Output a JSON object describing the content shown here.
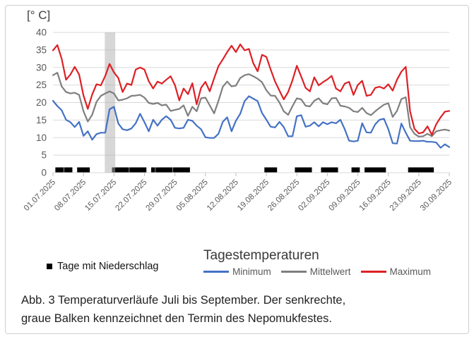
{
  "figure": {
    "unit_label": "[° C]",
    "caption_lines": [
      "Abb. 3 Temperaturverläufe Juli bis September. Der senkrechte,",
      "graue Balken kennzeichnet den Termin des Nepomukfestes."
    ]
  },
  "legend": {
    "precipitation_label": "Tage mit Niederschlag",
    "title": "Tagestemperaturen",
    "items": [
      {
        "label": "Minimum",
        "color": "#4472c4"
      },
      {
        "label": "Mittelwert",
        "color": "#7f7f7f"
      },
      {
        "label": "Maximum",
        "color": "#dd2025"
      }
    ]
  },
  "chart_data": {
    "type": "line",
    "title": "Tagestemperaturen",
    "y_unit": "[° C]",
    "ylim": [
      0,
      40
    ],
    "y_ticks": [
      0,
      5,
      10,
      15,
      20,
      25,
      30,
      35,
      40
    ],
    "grid": "horizontal-only",
    "x_tick_days": [
      0,
      7,
      14,
      21,
      28,
      35,
      42,
      49,
      56,
      63,
      70,
      77,
      84,
      91
    ],
    "x_tick_labels": [
      "01.07.2025",
      "08.07.2025",
      "15.07.2025",
      "22.07.2025",
      "29.07.2025",
      "05.08.2025",
      "12.08.2025",
      "19.08.2025",
      "26.08.2025",
      "02.09.2025",
      "09.09.2025",
      "16.09.2025",
      "23.09.2025",
      "30.09.2025"
    ],
    "event_band": {
      "start_day": 11.9,
      "end_day": 14.3,
      "fill": "rgba(175,175,175,0.5)",
      "meaning": "Termin des Nepomukfestes"
    },
    "precipitation": {
      "label": "Tage mit Niederschlag",
      "marker_color": "#000000",
      "day_ranges": [
        [
          1,
          2
        ],
        [
          3,
          4
        ],
        [
          6,
          8
        ],
        [
          14,
          17
        ],
        [
          18,
          21
        ],
        [
          23,
          23
        ],
        [
          24,
          27
        ],
        [
          28,
          31
        ],
        [
          49,
          51
        ],
        [
          56,
          59
        ],
        [
          62,
          65
        ],
        [
          69,
          70
        ],
        [
          72,
          76
        ],
        [
          82,
          87
        ]
      ]
    },
    "series": [
      {
        "name": "Minimum",
        "color": "#4472c4",
        "values": [
          20.5,
          19.0,
          17.8,
          15.1,
          14.4,
          13.0,
          14.5,
          10.5,
          11.8,
          9.4,
          11.0,
          11.4,
          11.4,
          18.1,
          18.8,
          14.0,
          12.4,
          12.1,
          12.6,
          14.1,
          16.8,
          14.4,
          11.8,
          15.1,
          13.4,
          15.1,
          16.1,
          15.1,
          12.8,
          12.6,
          12.8,
          15.1,
          14.8,
          13.4,
          12.4,
          10.1,
          9.9,
          9.9,
          11.1,
          14.5,
          15.8,
          11.8,
          14.8,
          16.8,
          20.4,
          21.8,
          21.1,
          20.4,
          17.0,
          15.1,
          13.1,
          12.9,
          14.5,
          13.0,
          10.4,
          10.4,
          16.1,
          16.4,
          13.1,
          13.4,
          14.4,
          13.2,
          14.4,
          13.8,
          14.4,
          14.1,
          15.1,
          12.4,
          9.1,
          8.9,
          9.1,
          14.1,
          11.5,
          11.4,
          13.8,
          15.1,
          15.4,
          12.4,
          8.4,
          8.3,
          14.0,
          11.4,
          9.1,
          9.0,
          9.0,
          9.1,
          8.8,
          8.8,
          8.6,
          7.1,
          8.1,
          7.3
        ]
      },
      {
        "name": "Mittelwert",
        "color": "#7f7f7f",
        "values": [
          27.8,
          28.5,
          24.6,
          23.0,
          22.6,
          22.8,
          22.2,
          17.5,
          14.6,
          16.5,
          20.2,
          21.9,
          22.6,
          23.2,
          22.6,
          20.6,
          20.8,
          21.2,
          21.9,
          22.0,
          22.2,
          21.4,
          19.9,
          19.6,
          19.9,
          19.2,
          19.4,
          17.6,
          17.9,
          18.2,
          19.2,
          16.2,
          18.8,
          17.5,
          21.2,
          21.4,
          19.2,
          16.9,
          20.5,
          24.5,
          26.0,
          24.6,
          24.8,
          27.0,
          27.8,
          28.1,
          27.5,
          26.8,
          25.8,
          23.5,
          22.0,
          21.9,
          20.0,
          17.5,
          16.5,
          19.0,
          21.2,
          20.9,
          19.1,
          18.9,
          20.5,
          21.2,
          19.8,
          19.5,
          21.2,
          21.3,
          19.1,
          18.9,
          18.5,
          17.5,
          17.3,
          18.5,
          17.0,
          16.4,
          17.5,
          18.5,
          19.4,
          19.8,
          15.9,
          17.6,
          21.0,
          21.5,
          13.0,
          11.1,
          10.3,
          10.4,
          11.1,
          10.4,
          11.8,
          12.1,
          12.3,
          12.0
        ]
      },
      {
        "name": "Maximum",
        "color": "#dd2025",
        "values": [
          34.9,
          36.4,
          32.5,
          26.5,
          28.0,
          30.2,
          28.0,
          22.0,
          18.2,
          22.3,
          25.2,
          24.9,
          27.6,
          31.0,
          28.6,
          27.0,
          23.0,
          25.4,
          25.0,
          29.4,
          30.0,
          29.4,
          26.1,
          24.0,
          26.0,
          25.4,
          26.5,
          27.5,
          25.0,
          20.6,
          24.0,
          22.4,
          25.5,
          19.5,
          24.2,
          25.9,
          23.2,
          26.9,
          30.4,
          32.3,
          34.4,
          36.2,
          34.4,
          36.6,
          34.9,
          35.3,
          31.2,
          28.9,
          33.6,
          33.0,
          29.4,
          26.0,
          23.4,
          20.9,
          23.0,
          26.4,
          30.5,
          27.4,
          24.2,
          23.2,
          27.2,
          24.9,
          25.8,
          26.6,
          27.6,
          24.0,
          23.2,
          25.4,
          25.9,
          22.2,
          25.0,
          26.2,
          21.9,
          22.2,
          24.2,
          24.5,
          24.0,
          25.2,
          23.4,
          26.5,
          28.8,
          30.2,
          17.5,
          12.5,
          11.2,
          11.5,
          13.2,
          10.8,
          13.8,
          15.8,
          17.4,
          17.6
        ]
      }
    ]
  }
}
